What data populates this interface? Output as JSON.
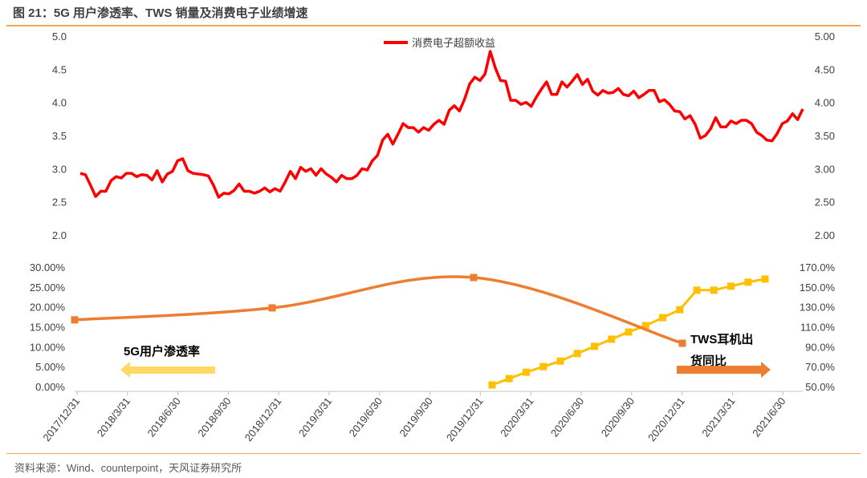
{
  "title": "图 21：5G 用户渗透率、TWS 销量及消费电子业绩增速",
  "source": "资料来源：Wind、counterpoint，天风证券研究所",
  "chart_data": [
    {
      "type": "line",
      "legend": "top-center",
      "series": [
        {
          "name": "消费电子超额收益",
          "color": "#FF0000",
          "values": [
            2.93,
            2.91,
            2.75,
            2.58,
            2.66,
            2.66,
            2.82,
            2.88,
            2.86,
            2.93,
            2.93,
            2.88,
            2.91,
            2.9,
            2.83,
            2.97,
            2.8,
            2.92,
            2.96,
            3.12,
            3.15,
            2.97,
            2.93,
            2.92,
            2.91,
            2.89,
            2.75,
            2.57,
            2.63,
            2.62,
            2.67,
            2.77,
            2.66,
            2.66,
            2.63,
            2.66,
            2.71,
            2.65,
            2.7,
            2.66,
            2.8,
            2.96,
            2.85,
            3.02,
            2.96,
            3.0,
            2.9,
            3.0,
            2.92,
            2.87,
            2.8,
            2.9,
            2.85,
            2.85,
            2.9,
            3.0,
            2.98,
            3.12,
            3.2,
            3.43,
            3.52,
            3.37,
            3.52,
            3.68,
            3.62,
            3.62,
            3.55,
            3.62,
            3.58,
            3.67,
            3.73,
            3.67,
            3.88,
            3.95,
            3.87,
            4.05,
            4.28,
            4.38,
            4.33,
            4.43,
            4.77,
            4.52,
            4.33,
            4.32,
            4.03,
            4.03,
            3.97,
            4.0,
            3.94,
            4.08,
            4.2,
            4.31,
            4.12,
            4.12,
            4.31,
            4.23,
            4.32,
            4.42,
            4.27,
            4.35,
            4.17,
            4.11,
            4.18,
            4.14,
            4.15,
            4.21,
            4.12,
            4.1,
            4.17,
            4.07,
            4.12,
            4.18,
            4.18,
            4.01,
            4.04,
            3.97,
            3.87,
            3.86,
            3.75,
            3.8,
            3.67,
            3.46,
            3.5,
            3.6,
            3.77,
            3.63,
            3.63,
            3.72,
            3.68,
            3.73,
            3.73,
            3.68,
            3.55,
            3.5,
            3.43,
            3.42,
            3.53,
            3.68,
            3.72,
            3.83,
            3.74,
            3.9
          ]
        }
      ],
      "y_left": {
        "ticks": [
          "5.0",
          "4.5",
          "4.0",
          "3.5",
          "3.0",
          "2.5",
          "2.0"
        ],
        "range": [
          2.0,
          5.0
        ]
      },
      "y_right": {
        "ticks": [
          "5.00",
          "4.50",
          "4.00",
          "3.50",
          "3.00",
          "2.50",
          "2.00"
        ],
        "range": [
          2.0,
          5.0
        ]
      }
    },
    {
      "type": "line",
      "categories": [
        "2017/12/31",
        "2018/3/31",
        "2018/6/30",
        "2018/9/30",
        "2018/12/31",
        "2019/3/31",
        "2019/6/30",
        "2019/9/30",
        "2019/12/31",
        "2020/3/31",
        "2020/6/30",
        "2020/9/30",
        "2020/12/31",
        "2021/3/31",
        "2021/6/30"
      ],
      "series": [
        {
          "name": "5G用户渗透率",
          "axis": "left",
          "color": "#FFC000",
          "x": [
            "2020/1",
            "2020/2",
            "2020/3",
            "2020/4",
            "2020/5",
            "2020/6",
            "2020/7",
            "2020/8",
            "2020/9",
            "2020/10",
            "2020/11",
            "2020/12",
            "2021/1",
            "2021/2",
            "2021/3",
            "2021/4",
            "2021/5"
          ],
          "values": [
            0.4,
            2.0,
            3.6,
            5.0,
            6.4,
            8.3,
            10.1,
            11.9,
            13.7,
            15.3,
            17.3,
            19.3,
            24.2,
            24.2,
            25.2,
            26.2,
            27.0
          ]
        },
        {
          "name": "TWS耳机出货同比",
          "axis": "right",
          "color": "#ED7D31",
          "smooth": true,
          "x": [
            "2017/12/31",
            "2018/12/31",
            "2019/12/31",
            "2020/12/31"
          ],
          "values": [
            117,
            129,
            159.5,
            93.5
          ]
        }
      ],
      "y_left": {
        "ticks": [
          "30.00%",
          "25.00%",
          "20.00%",
          "15.00%",
          "10.00%",
          "5.00%",
          "0.00%"
        ],
        "range": [
          0,
          30
        ]
      },
      "y_right": {
        "ticks": [
          "170.0%",
          "150.0%",
          "130.0%",
          "110.0%",
          "90.0%",
          "70.0%",
          "50.0%"
        ],
        "range": [
          50,
          170
        ]
      },
      "annotations": {
        "left_label": "5G用户渗透率",
        "right_label_1": "TWS耳机出",
        "right_label_2": "货同比"
      }
    }
  ]
}
